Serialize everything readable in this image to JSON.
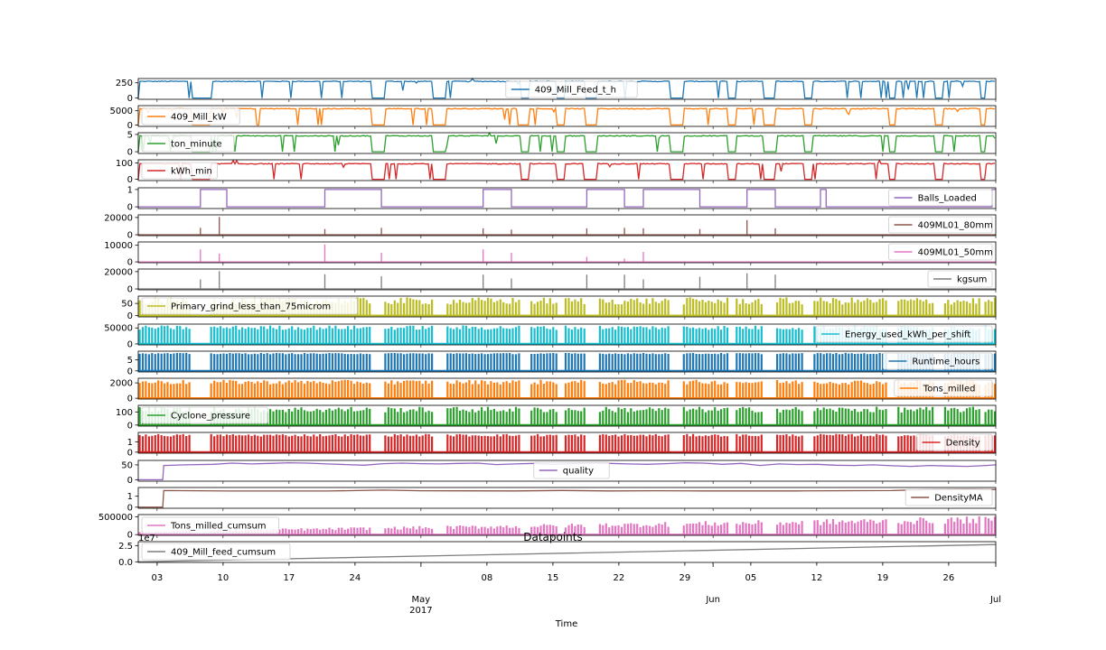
{
  "chart_data": {
    "type": "line",
    "title": "Datapoints",
    "xlabel": "Time",
    "x_range": [
      "2017-04-01",
      "2017-07-01"
    ],
    "x_ticks": [
      {
        "date": "2017-04-03",
        "label": "03"
      },
      {
        "date": "2017-04-10",
        "label": "10"
      },
      {
        "date": "2017-04-17",
        "label": "17"
      },
      {
        "date": "2017-04-24",
        "label": "24"
      },
      {
        "date": "2017-05-01",
        "label": "May\n2017"
      },
      {
        "date": "2017-05-08",
        "label": "08"
      },
      {
        "date": "2017-05-15",
        "label": "15"
      },
      {
        "date": "2017-05-22",
        "label": "22"
      },
      {
        "date": "2017-05-29",
        "label": "29"
      },
      {
        "date": "2017-06-01",
        "label": "Jun"
      },
      {
        "date": "2017-06-05",
        "label": "05"
      },
      {
        "date": "2017-06-12",
        "label": "12"
      },
      {
        "date": "2017-06-19",
        "label": "19"
      },
      {
        "date": "2017-06-26",
        "label": "26"
      },
      {
        "date": "2017-07-01",
        "label": "Jul"
      }
    ],
    "downtime_days": [
      [
        5.6,
        7.6
      ],
      [
        24.8,
        26.2
      ],
      [
        31.2,
        32.6
      ],
      [
        40.6,
        41.4
      ],
      [
        44.4,
        45.3
      ],
      [
        47.5,
        48.7
      ],
      [
        56.4,
        57.8
      ],
      [
        62.6,
        63.4
      ],
      [
        66.4,
        67.6
      ],
      [
        70.6,
        71.6
      ],
      [
        79.6,
        80.4
      ],
      [
        84.6,
        85.5
      ],
      [
        89.3,
        89.9
      ]
    ],
    "ball_loading_days": [
      6.6,
      9.4,
      19.8,
      25.8,
      36.6,
      39.6,
      47.6,
      51.6,
      53.6,
      59.6,
      64.6,
      67.6,
      72.4,
      73.0
    ],
    "series": [
      {
        "name": "409_Mill_Feed_t_h",
        "color": "#1f77b4",
        "ylim": [
          -20,
          320
        ],
        "yticks": [
          "250",
          "0"
        ],
        "legend": "top-center",
        "pattern": "step",
        "normal": 275,
        "low": 0,
        "max_value": 320
      },
      {
        "name": "409_Mill_kW",
        "color": "#ff7f0e",
        "ylim": [
          -500,
          6800
        ],
        "yticks": [
          "5000",
          "0"
        ],
        "legend": "top-left",
        "pattern": "step",
        "normal": 5750,
        "low": 0,
        "max_value": 6800
      },
      {
        "name": "ton_minute",
        "color": "#2ca02c",
        "ylim": [
          -0.5,
          5.5
        ],
        "yticks": [
          "5",
          "0"
        ],
        "legend": "top-left",
        "pattern": "step",
        "normal": 4.6,
        "low": 0,
        "max_value": 5.4
      },
      {
        "name": "kWh_min",
        "color": "#d62728",
        "ylim": [
          -8,
          120
        ],
        "yticks": [
          "100",
          "0"
        ],
        "legend": "top-left",
        "pattern": "step",
        "normal": 96,
        "low": 0,
        "max_value": 115
      },
      {
        "name": "Balls_Loaded",
        "color": "#9467bd",
        "ylim": [
          -0.1,
          1.1
        ],
        "yticks": [
          "1",
          "0"
        ],
        "legend": "bottom-right",
        "pattern": "boolean",
        "values": [
          0,
          1
        ]
      },
      {
        "name": "409ML01_80mm",
        "color": "#8c564b",
        "ylim": [
          -1000,
          23000
        ],
        "yticks": [
          "20000",
          "0"
        ],
        "legend": "bottom-right",
        "pattern": "spikes",
        "spike_values": [
          8000,
          20500,
          6500,
          8000,
          7500,
          6000,
          7500,
          8000,
          7500,
          6500,
          17000,
          7500
        ]
      },
      {
        "name": "409ML01_50mm",
        "color": "#e377c2",
        "ylim": [
          -500,
          12000
        ],
        "yticks": [
          "10000",
          "0"
        ],
        "legend": "bottom-right",
        "pattern": "spikes",
        "spike_values": [
          7500,
          5000,
          10500,
          5500,
          7500,
          5500,
          3000,
          2000,
          6000
        ]
      },
      {
        "name": "kgsum",
        "color": "#7f7f7f",
        "ylim": [
          -1000,
          23000
        ],
        "yticks": [
          "20000",
          "0"
        ],
        "legend": "bottom-right",
        "pattern": "spikes",
        "spike_values": [
          11000,
          20500,
          17000,
          14500,
          16500,
          12000,
          16500,
          16500,
          11000,
          14000,
          18000,
          16500
        ]
      },
      {
        "name": "Primary_grind_less_than_75microm",
        "color": "#bcbd22",
        "ylim": [
          -5,
          80
        ],
        "yticks": [
          "50",
          "0"
        ],
        "legend": "bottom-left",
        "pattern": "bars",
        "bar_max": 75,
        "bar_min": 45
      },
      {
        "name": "Energy_used_kWh_per_shift",
        "color": "#17becf",
        "ylim": [
          -3000,
          62000
        ],
        "yticks": [
          "50000",
          "0"
        ],
        "legend": "bottom-right",
        "pattern": "bars",
        "bar_max": 58000,
        "bar_min": 44000
      },
      {
        "name": "Runtime_hours",
        "color": "#1f77b4",
        "ylim": [
          -0.5,
          9
        ],
        "yticks": [
          "5",
          "0"
        ],
        "legend": "bottom-right",
        "pattern": "bars",
        "bar_max": 8.2,
        "bar_min": 7.6
      },
      {
        "name": "Tons_milled",
        "color": "#ff7f0e",
        "ylim": [
          -100,
          2600
        ],
        "yticks": [
          "2000",
          "0"
        ],
        "legend": "bottom-right",
        "pattern": "bars",
        "bar_max": 2400,
        "bar_min": 1800
      },
      {
        "name": "Cyclone_pressure",
        "color": "#2ca02c",
        "ylim": [
          -8,
          150
        ],
        "yticks": [
          "100",
          "0"
        ],
        "legend": "bottom-left",
        "pattern": "bars",
        "bar_max": 140,
        "bar_min": 95
      },
      {
        "name": "Density",
        "color": "#d62728",
        "ylim": [
          -0.1,
          1.9
        ],
        "yticks": [
          "1",
          "0"
        ],
        "legend": "bottom-right",
        "pattern": "bars",
        "bar_max": 1.75,
        "bar_min": 1.5
      },
      {
        "name": "quality",
        "color": "#9467bd",
        "ylim": [
          -5,
          65
        ],
        "yticks": [
          "50",
          "0"
        ],
        "legend": "bottom-center",
        "pattern": "smooth",
        "x": [
          0,
          2.6,
          2.7,
          5,
          8,
          10,
          12,
          14,
          16,
          18,
          20,
          22,
          24,
          26,
          28,
          30,
          32,
          34,
          36,
          38,
          40,
          42,
          44,
          46,
          48,
          50,
          52,
          54,
          56,
          58,
          60,
          62,
          64,
          66,
          68,
          70,
          72,
          74,
          76,
          78,
          80,
          82,
          84,
          86,
          88,
          90,
          91
        ],
        "y": [
          0,
          0,
          48,
          50,
          52,
          56,
          53,
          55,
          57,
          56,
          53,
          51,
          49,
          54,
          56,
          54,
          53,
          55,
          56,
          51,
          53,
          55,
          52,
          54,
          56,
          55,
          53,
          52,
          54,
          57,
          56,
          52,
          55,
          48,
          53,
          51,
          52,
          49,
          48,
          50,
          47,
          45,
          48,
          46,
          45,
          48,
          50
        ]
      },
      {
        "name": "DensityMA",
        "color": "#8c564b",
        "ylim": [
          -0.1,
          1.8
        ],
        "yticks": [
          "1",
          "0"
        ],
        "legend": "bottom-right",
        "pattern": "smooth",
        "x": [
          0,
          2.6,
          2.7,
          10,
          20,
          26,
          30,
          40,
          45,
          50,
          55,
          60,
          70,
          80,
          84,
          88,
          91
        ],
        "y": [
          0,
          0,
          1.52,
          1.48,
          1.48,
          1.56,
          1.5,
          1.49,
          1.53,
          1.49,
          1.5,
          1.49,
          1.49,
          1.52,
          1.62,
          1.64,
          1.62
        ]
      },
      {
        "name": "Tons_milled_cumsum",
        "color": "#e377c2",
        "ylim": [
          -20000,
          560000
        ],
        "yticks": [
          "500000",
          "0"
        ],
        "legend": "top-left",
        "pattern": "sawtooth",
        "bar_max": 520000
      },
      {
        "name": "409_Mill_feed_cumsum",
        "color": "#7f7f7f",
        "ylim": [
          -0.1,
          3.1
        ],
        "yticks": [
          "2.5",
          "0.0"
        ],
        "offset_text": "1e7",
        "legend": "bottom-left",
        "pattern": "cumulative",
        "x": [
          0,
          91
        ],
        "y": [
          0,
          2.65
        ]
      }
    ]
  }
}
